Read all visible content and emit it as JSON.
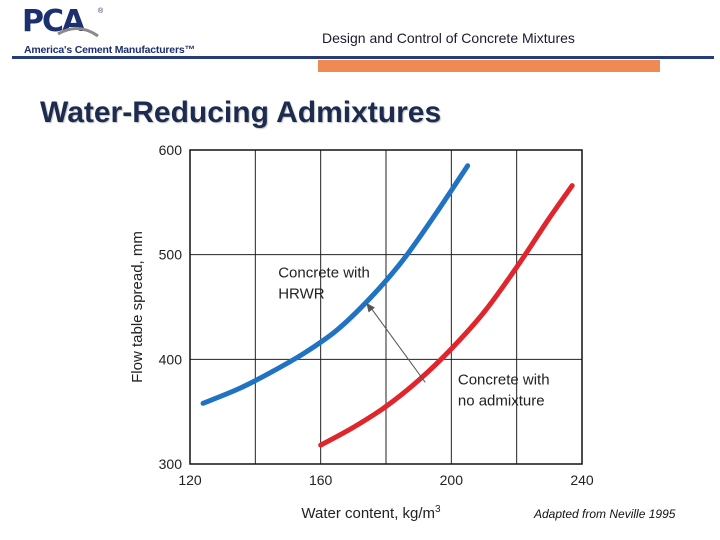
{
  "header": {
    "logo_text": "PCA",
    "logo_tagline": "America's Cement Manufacturers™",
    "deck_title": "Design and Control of Concrete Mixtures"
  },
  "slide": {
    "title": "Water-Reducing Admixtures",
    "credit": "Adapted from Neville 1995"
  },
  "colors": {
    "hrwr": "#1f73c2",
    "no_admixture": "#e0262c",
    "header_rule": "#263d7a",
    "accent_bar": "#ef8a54"
  },
  "chart_data": {
    "type": "line",
    "title": "",
    "xlabel": "Water content, kg/m",
    "xlabel_superscript": "3",
    "ylabel": "Flow table spread, mm",
    "xlim": [
      120,
      240
    ],
    "ylim": [
      300,
      600
    ],
    "xticks": [
      "120",
      "160",
      "200",
      "240"
    ],
    "yticks": [
      "300",
      "400",
      "500",
      "600"
    ],
    "grid": true,
    "series": [
      {
        "name": "Concrete with HRWR",
        "label_lines": [
          "Concrete with",
          "HRWR"
        ],
        "color": "#1f73c2",
        "x": [
          124,
          135,
          145,
          155,
          165,
          175,
          185,
          195,
          205
        ],
        "y": [
          358,
          372,
          388,
          406,
          428,
          458,
          494,
          538,
          585
        ]
      },
      {
        "name": "Concrete with no admixture",
        "label_lines": [
          "Concrete with",
          "no admixture"
        ],
        "color": "#e0262c",
        "x": [
          160,
          170,
          180,
          190,
          200,
          210,
          220,
          230,
          237
        ],
        "y": [
          318,
          335,
          355,
          380,
          410,
          445,
          488,
          535,
          566
        ]
      }
    ]
  }
}
